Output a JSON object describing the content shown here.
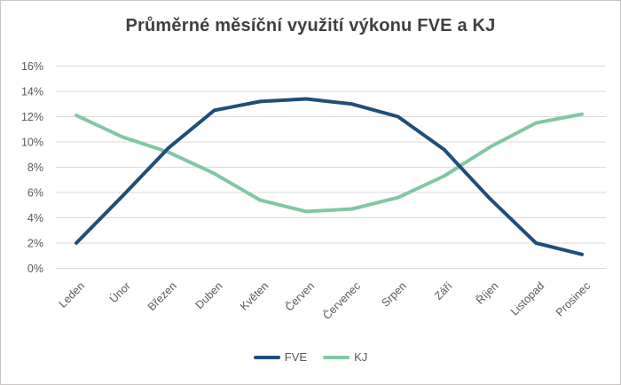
{
  "window": {
    "background": "#ffffff",
    "border_color": "#c9c7c5"
  },
  "chart_data": {
    "type": "line",
    "title": "Průměrné měsíční využití výkonu FVE a KJ",
    "categories": [
      "Leden",
      "Únor",
      "Březen",
      "Duben",
      "Květen",
      "Červen",
      "Červenec",
      "Srpen",
      "Září",
      "Říjen",
      "Listopad",
      "Prosinec"
    ],
    "series": [
      {
        "name": "FVE",
        "color": "#1F4E79",
        "values": [
          2.0,
          5.7,
          9.5,
          12.5,
          13.2,
          13.4,
          13.0,
          12.0,
          9.4,
          5.5,
          2.0,
          1.1
        ]
      },
      {
        "name": "KJ",
        "color": "#80C7A4",
        "values": [
          12.1,
          10.4,
          9.2,
          7.5,
          5.4,
          4.5,
          4.7,
          5.6,
          7.3,
          9.6,
          11.5,
          12.2
        ]
      }
    ],
    "xlabel": "",
    "ylabel": "",
    "ylim": [
      0,
      16
    ],
    "y_ticks": [
      "0%",
      "2%",
      "4%",
      "6%",
      "8%",
      "10%",
      "12%",
      "14%",
      "16%"
    ],
    "grid": "horizontal",
    "grid_color": "#D9D9D9",
    "label_color": "#595959",
    "title_color": "#404040",
    "legend_position": "bottom-center"
  }
}
